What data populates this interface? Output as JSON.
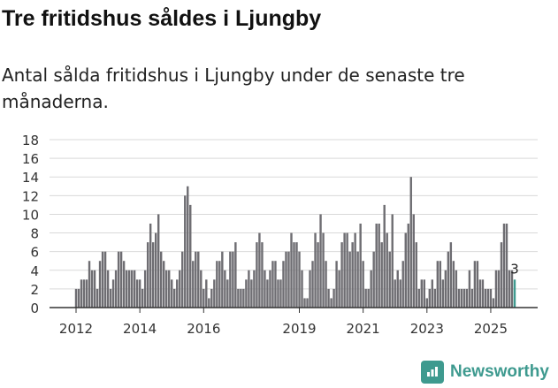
{
  "header": {
    "title": "Tre fritidshus såldes i Ljungby",
    "subtitle": "Antal sålda fritidshus i Ljungby under de senaste tre månaderna."
  },
  "brand": {
    "name": "Newsworthy",
    "color": "#3e9a8f"
  },
  "colors": {
    "bar": "#6e6d72",
    "highlight": "#3e9a8f",
    "grid": "#d9d9d9",
    "axis": "#333333"
  },
  "chart_data": {
    "type": "bar",
    "xlabel": "",
    "ylabel": "",
    "ylim": [
      0,
      18
    ],
    "yticks": [
      "0",
      "2",
      "4",
      "6",
      "8",
      "10",
      "12",
      "14",
      "16",
      "18"
    ],
    "xtick_labels": [
      "2012",
      "2014",
      "2016",
      "2019",
      "2021",
      "2023",
      "2025"
    ],
    "xtick_positions": [
      2012,
      2014,
      2016,
      2019,
      2021,
      2023,
      2025
    ],
    "x_start": 2012,
    "x_end": 2025.75,
    "grid": true,
    "values": [
      2,
      2,
      3,
      3,
      3,
      5,
      4,
      4,
      2,
      5,
      6,
      6,
      4,
      2,
      3,
      4,
      6,
      6,
      5,
      4,
      4,
      4,
      4,
      3,
      3,
      2,
      4,
      7,
      9,
      7,
      8,
      10,
      6,
      5,
      4,
      4,
      3,
      2,
      3,
      4,
      6,
      12,
      13,
      11,
      5,
      6,
      6,
      4,
      2,
      3,
      1,
      2,
      3,
      5,
      5,
      6,
      4,
      3,
      6,
      6,
      7,
      2,
      2,
      2,
      3,
      4,
      3,
      4,
      7,
      8,
      7,
      4,
      3,
      4,
      5,
      5,
      3,
      3,
      5,
      6,
      6,
      8,
      7,
      7,
      6,
      4,
      1,
      1,
      4,
      5,
      8,
      7,
      10,
      8,
      5,
      2,
      1,
      2,
      5,
      4,
      7,
      8,
      8,
      6,
      7,
      8,
      6,
      9,
      5,
      2,
      2,
      4,
      6,
      9,
      9,
      7,
      11,
      8,
      6,
      10,
      3,
      4,
      3,
      5,
      8,
      9,
      14,
      10,
      7,
      2,
      3,
      3,
      1,
      2,
      3,
      2,
      5,
      5,
      3,
      4,
      6,
      7,
      5,
      4,
      2,
      2,
      2,
      2,
      4,
      2,
      5,
      5,
      3,
      3,
      2,
      2,
      2,
      1,
      4,
      4,
      7,
      9,
      9,
      4,
      4,
      3
    ],
    "last_value_label": "3"
  }
}
